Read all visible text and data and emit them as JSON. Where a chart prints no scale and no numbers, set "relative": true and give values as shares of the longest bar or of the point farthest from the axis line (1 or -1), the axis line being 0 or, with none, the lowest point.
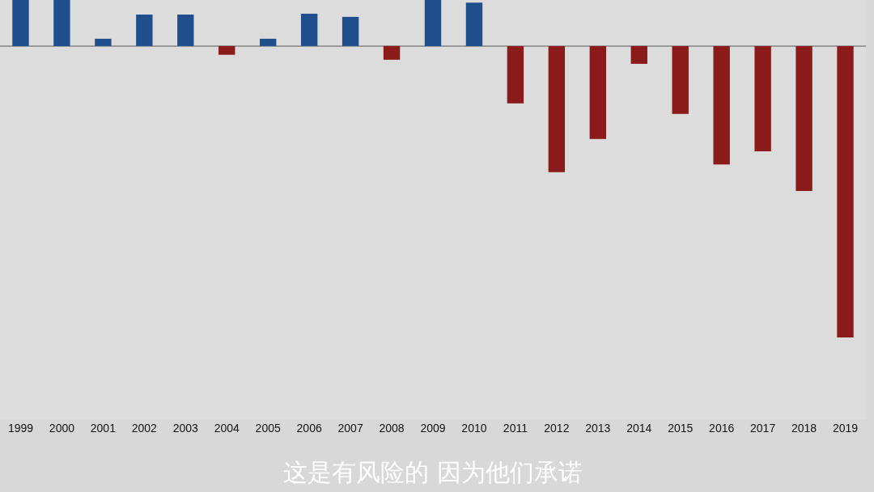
{
  "chart_data": {
    "type": "bar",
    "relative": true,
    "categories": [
      "1999",
      "2000",
      "2001",
      "2002",
      "2003",
      "2004",
      "2005",
      "2006",
      "2007",
      "2008",
      "2009",
      "2010",
      "2011",
      "2012",
      "2013",
      "2014",
      "2015",
      "2016",
      "2017",
      "2018",
      "2019"
    ],
    "values": [
      0.158,
      0.158,
      0.025,
      0.108,
      0.108,
      -0.03,
      0.025,
      0.111,
      0.1,
      -0.047,
      0.158,
      0.149,
      -0.197,
      -0.433,
      -0.319,
      -0.061,
      -0.233,
      -0.406,
      -0.361,
      -0.497,
      -1
    ],
    "colors": [
      "#1f4e8c",
      "#1f4e8c",
      "#1f4e8c",
      "#1f4e8c",
      "#1f4e8c",
      "#8b1a1a",
      "#1f4e8c",
      "#1f4e8c",
      "#1f4e8c",
      "#8b1a1a",
      "#1f4e8c",
      "#1f4e8c",
      "#8b1a1a",
      "#8b1a1a",
      "#8b1a1a",
      "#8b1a1a",
      "#8b1a1a",
      "#8b1a1a",
      "#8b1a1a",
      "#8b1a1a",
      "#8b1a1a"
    ],
    "annotations": [
      "这是有风险的 因为他们承诺"
    ],
    "grid": false
  }
}
